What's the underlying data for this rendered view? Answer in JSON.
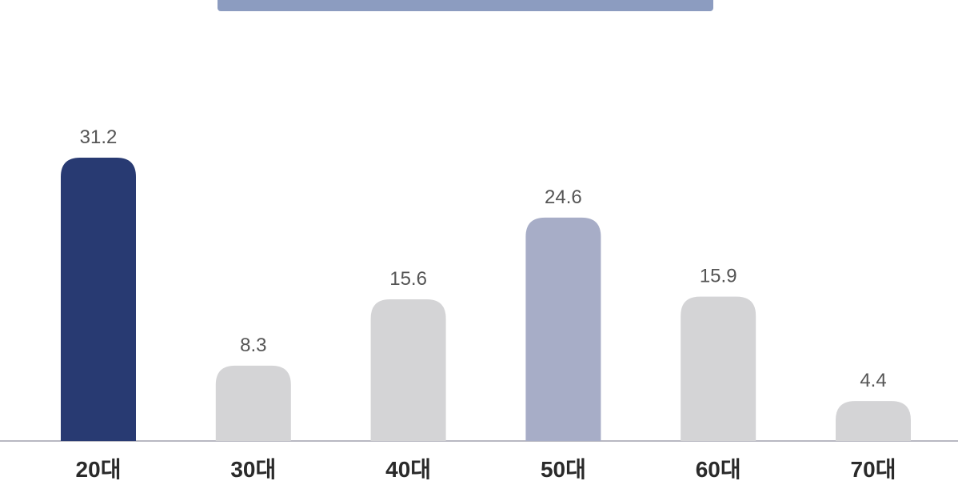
{
  "chart_data": {
    "type": "bar",
    "categories": [
      "20대",
      "30대",
      "40대",
      "50대",
      "60대",
      "70대"
    ],
    "values": [
      31.2,
      8.3,
      15.6,
      24.6,
      15.9,
      4.4
    ],
    "value_labels": [
      "31.2",
      "8.3",
      "15.6",
      "24.6",
      "15.9",
      "4.4"
    ],
    "colors": [
      "#283a72",
      "#d4d4d6",
      "#d4d4d6",
      "#a7adc7",
      "#d4d4d6",
      "#d4d4d6"
    ],
    "label_colors": [
      "#333333",
      "#666666",
      "#666666",
      "#222222",
      "#666666",
      "#666666"
    ],
    "ylim": [
      0,
      31.2
    ],
    "grid": false,
    "legend": "none",
    "title": "",
    "xlabel": "",
    "ylabel": ""
  },
  "colors": {
    "baseline": "#b8b8c2",
    "title_accent": "#2e4a8c"
  }
}
